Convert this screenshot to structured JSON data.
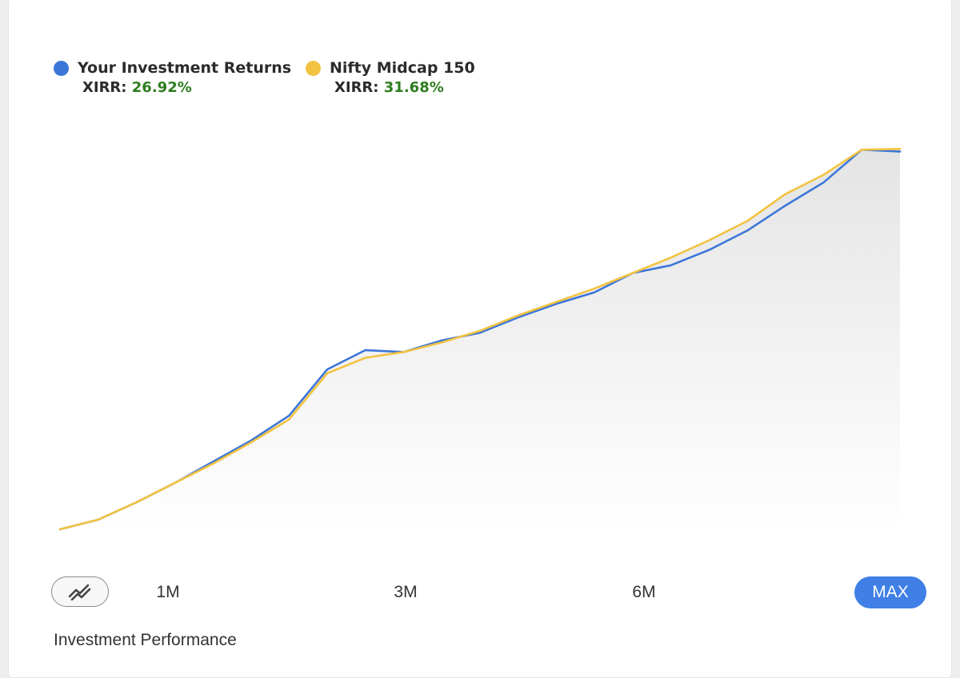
{
  "colors": {
    "portfolio": "#3c76d8",
    "benchmark": "#f2c341",
    "xirr_value": "#2e7d1f",
    "active_button": "#3f7fe6"
  },
  "legend": [
    {
      "name": "Your Investment Returns",
      "xirr_label": "XIRR:",
      "xirr_value": "26.92%"
    },
    {
      "name": "Nifty Midcap 150",
      "xirr_label": "XIRR:",
      "xirr_value": "31.68%"
    }
  ],
  "range_selector": {
    "toggle_icon": "chart-compare-icon",
    "options": [
      "1M",
      "3M",
      "6M",
      "MAX"
    ],
    "selected": "MAX"
  },
  "footer": {
    "label": "Investment Performance"
  },
  "chart_data": {
    "type": "line",
    "x": [
      0,
      1,
      2,
      3,
      4,
      5,
      6,
      7,
      8,
      9,
      10,
      11,
      12,
      13,
      14,
      15,
      16,
      17,
      18,
      19,
      20,
      21,
      22
    ],
    "series": [
      {
        "name": "Your Investment Returns",
        "values": [
          0,
          2.5,
          7,
          12,
          17.5,
          23,
          29.5,
          41.5,
          46.5,
          46,
          49,
          51,
          55,
          58.5,
          61.5,
          66.5,
          68.5,
          72.5,
          77.5,
          84,
          90,
          98.5,
          98
        ]
      },
      {
        "name": "Nifty Midcap 150",
        "values": [
          0,
          2.5,
          7,
          12,
          17,
          22.5,
          28.5,
          40.5,
          44.5,
          46,
          48.5,
          51.5,
          55.5,
          59,
          62.5,
          66.5,
          70.5,
          75,
          80,
          87,
          92,
          98.5,
          98.7
        ]
      }
    ],
    "ylim": [
      0,
      100
    ],
    "area_fill": "gradient-under-series",
    "grid": false
  }
}
